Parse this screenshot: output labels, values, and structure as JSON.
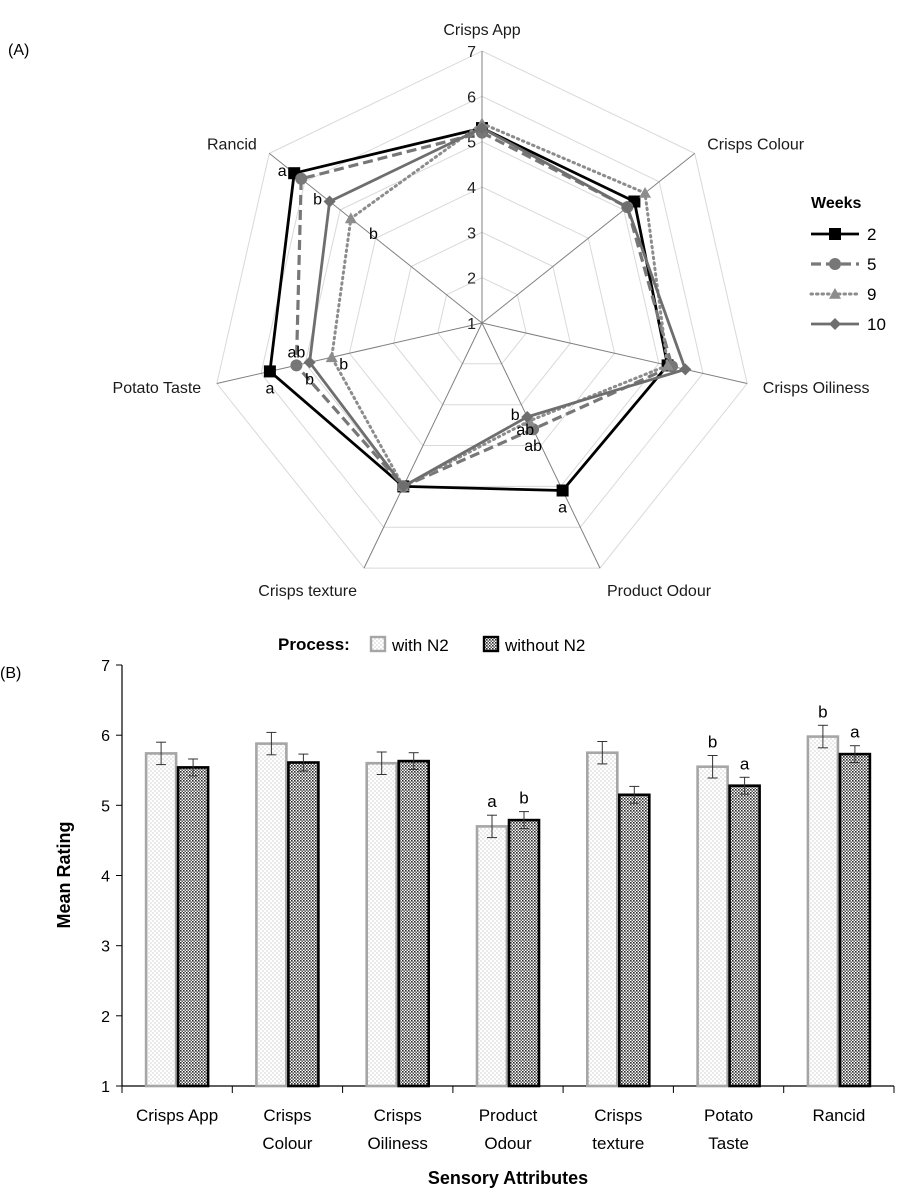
{
  "panel_a_label": "(A)",
  "panel_b_label": "(B)",
  "colors": {
    "week_2": "#000000",
    "week_5": "#777777",
    "week_9": "#8c8c8c",
    "week_10": "#6e6e6e",
    "with_n2": "#a6a6a6",
    "without_n2": "#000000",
    "grid": "#d9d9d9",
    "spoke": "#808080"
  },
  "chart_data": [
    {
      "type": "radar",
      "axes": [
        "Crisps App",
        "Crisps Colour",
        "Crisps Oiliness",
        "Product Odour",
        "Crisps texture",
        "Potato Taste",
        "Rancid"
      ],
      "rlim": [
        1,
        7
      ],
      "ticks": [
        "1",
        "2",
        "3",
        "4",
        "5",
        "6",
        "7"
      ],
      "legend_title": "Weeks",
      "legend_position": "right",
      "series": [
        {
          "name": "2",
          "values": [
            5.3,
            5.3,
            5.2,
            5.1,
            5.0,
            5.8,
            6.3
          ]
        },
        {
          "name": "5",
          "values": [
            5.2,
            5.1,
            5.3,
            3.6,
            5.0,
            5.2,
            6.1
          ]
        },
        {
          "name": "9",
          "values": [
            5.4,
            5.6,
            5.2,
            3.4,
            5.0,
            4.4,
            4.7
          ]
        },
        {
          "name": "10",
          "values": [
            5.3,
            5.1,
            5.6,
            3.3,
            5.0,
            4.9,
            5.3
          ]
        }
      ],
      "annotations": [
        {
          "axis": "Rancid",
          "text": "a",
          "value": 6.3,
          "side": "left"
        },
        {
          "axis": "Rancid",
          "text": "b",
          "value": 5.3,
          "side": "left"
        },
        {
          "axis": "Rancid",
          "text": "b",
          "value": 4.4,
          "side": "right"
        },
        {
          "axis": "Potato Taste",
          "text": "ab",
          "value": 5.2,
          "side": "above"
        },
        {
          "axis": "Potato Taste",
          "text": "a",
          "value": 5.8,
          "side": "below"
        },
        {
          "axis": "Potato Taste",
          "text": "b",
          "value": 4.9,
          "side": "below"
        },
        {
          "axis": "Potato Taste",
          "text": "b",
          "value": 4.4,
          "side": "right"
        },
        {
          "axis": "Product Odour",
          "text": "b",
          "value": 3.3,
          "side": "left"
        },
        {
          "axis": "Product Odour",
          "text": "ab",
          "value": 3.2,
          "side": "below"
        },
        {
          "axis": "Product Odour",
          "text": "ab",
          "value": 3.6,
          "side": "below"
        },
        {
          "axis": "Product Odour",
          "text": "a",
          "value": 5.1,
          "side": "below"
        }
      ]
    },
    {
      "type": "bar",
      "legend_title": "Process:",
      "legend_position": "top",
      "xlabel": "Sensory Attributes",
      "ylabel": "Mean Rating",
      "ylim": [
        1,
        7
      ],
      "yticks": [
        "1",
        "2",
        "3",
        "4",
        "5",
        "6",
        "7"
      ],
      "categories": [
        "Crisps App",
        "Crisps Colour",
        "Crisps Oiliness",
        "Product Odour",
        "Crisps texture",
        "Potato Taste",
        "Rancid"
      ],
      "category_lines": [
        [
          "Crisps App"
        ],
        [
          "Crisps",
          "Colour"
        ],
        [
          "Crisps",
          "Oiliness"
        ],
        [
          "Product",
          "Odour"
        ],
        [
          "Crisps",
          "texture"
        ],
        [
          "Potato",
          "Taste"
        ],
        [
          "Rancid"
        ]
      ],
      "series": [
        {
          "name": "with N2",
          "values": [
            5.74,
            5.88,
            5.6,
            4.7,
            5.75,
            5.55,
            5.98
          ],
          "errors": [
            0.16,
            0.16,
            0.16,
            0.16,
            0.16,
            0.16,
            0.16
          ],
          "letters": [
            "",
            "",
            "",
            "a",
            "",
            "b",
            "b"
          ]
        },
        {
          "name": "without N2",
          "values": [
            5.54,
            5.61,
            5.63,
            4.79,
            5.15,
            5.28,
            5.73
          ],
          "errors": [
            0.12,
            0.12,
            0.12,
            0.12,
            0.12,
            0.12,
            0.12
          ],
          "letters": [
            "",
            "",
            "",
            "b",
            "",
            "a",
            "a"
          ]
        }
      ]
    }
  ]
}
